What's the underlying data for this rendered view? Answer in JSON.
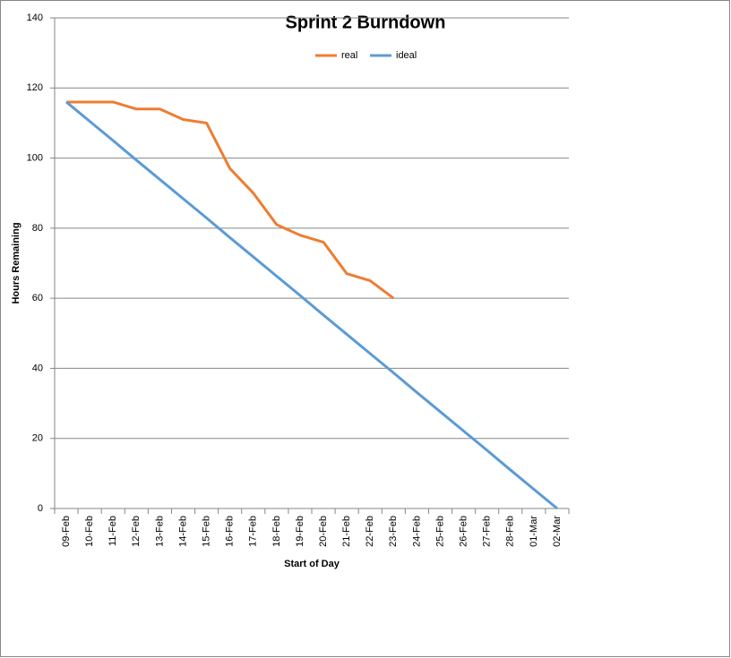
{
  "chart_data": {
    "type": "line",
    "title": "Sprint 2 Burndown",
    "x_label": "Start of Day",
    "y_label": "Hours Remaining",
    "categories": [
      "09-Feb",
      "10-Feb",
      "11-Feb",
      "12-Feb",
      "13-Feb",
      "14-Feb",
      "15-Feb",
      "16-Feb",
      "17-Feb",
      "18-Feb",
      "19-Feb",
      "20-Feb",
      "21-Feb",
      "22-Feb",
      "23-Feb",
      "24-Feb",
      "25-Feb",
      "26-Feb",
      "27-Feb",
      "28-Feb",
      "01-Mar",
      "02-Mar"
    ],
    "series": [
      {
        "name": "real",
        "color": "#ed7d31",
        "values": [
          116,
          116,
          116,
          114,
          114,
          111,
          110,
          97,
          90,
          81,
          78,
          76,
          67,
          65,
          60,
          null,
          null,
          null,
          null,
          null,
          null,
          null
        ]
      },
      {
        "name": "ideal",
        "color": "#5b9bd5",
        "values": [
          116,
          110.5,
          105,
          99.4,
          93.9,
          88.4,
          82.9,
          77.3,
          71.8,
          66.3,
          60.8,
          55.2,
          49.7,
          44.2,
          38.7,
          33.1,
          27.6,
          22.1,
          16.6,
          11,
          5.5,
          0
        ]
      }
    ],
    "ylim": [
      0,
      140
    ],
    "yticks": [
      0,
      20,
      40,
      60,
      80,
      100,
      120,
      140
    ],
    "grid": true,
    "legend": "top"
  }
}
